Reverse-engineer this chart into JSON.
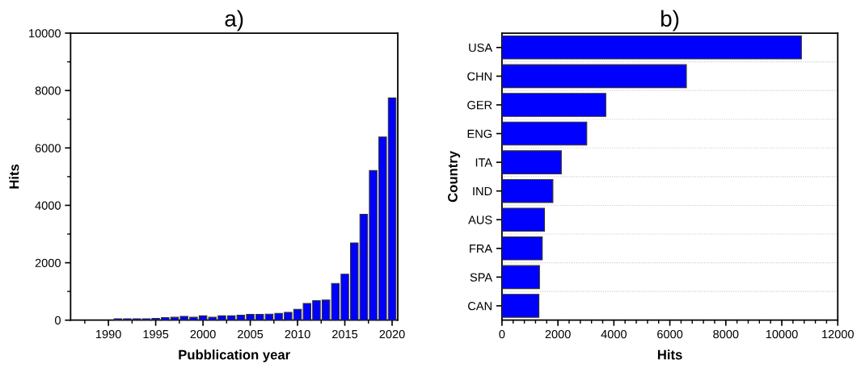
{
  "chart_data": [
    {
      "type": "bar",
      "title": "a)",
      "xlabel": "Pubblication year",
      "ylabel": "Hits",
      "color": "#0000ff",
      "x": [
        1991,
        1992,
        1993,
        1994,
        1995,
        1996,
        1997,
        1998,
        1999,
        2000,
        2001,
        2002,
        2003,
        2004,
        2005,
        2006,
        2007,
        2008,
        2009,
        2010,
        2011,
        2012,
        2013,
        2014,
        2015,
        2016,
        2017,
        2018,
        2019,
        2020
      ],
      "values": [
        50,
        50,
        50,
        50,
        60,
        90,
        100,
        130,
        100,
        150,
        100,
        150,
        150,
        170,
        200,
        200,
        210,
        240,
        270,
        380,
        580,
        680,
        700,
        1280,
        1600,
        2690,
        3690,
        5210,
        6380,
        7740
      ],
      "xlim": [
        1986,
        2020.6
      ],
      "xticks": [
        {
          "value": 1987.5,
          "label": null
        },
        1990,
        {
          "value": 1992.5,
          "label": null
        },
        1995,
        {
          "value": 1997.5,
          "label": null
        },
        2000,
        {
          "value": 2002.5,
          "label": null
        },
        2005,
        {
          "value": 2007.5,
          "label": null
        },
        2010,
        {
          "value": 2012.5,
          "label": null
        },
        2015,
        {
          "value": 2017.5,
          "label": null
        },
        2020
      ],
      "ylim": [
        0,
        10000
      ],
      "yticks": [
        0,
        {
          "value": 1000,
          "label": null
        },
        2000,
        {
          "value": 3000,
          "label": null
        },
        4000,
        {
          "value": 5000,
          "label": null
        },
        6000,
        {
          "value": 7000,
          "label": null
        },
        8000,
        {
          "value": 9000,
          "label": null
        },
        10000
      ],
      "grid": false
    },
    {
      "type": "bar",
      "orientation": "horizontal",
      "title": "b)",
      "xlabel": "Hits",
      "ylabel": "Country",
      "color": "#0000ff",
      "categories": [
        "USA",
        "CHN",
        "GER",
        "ENG",
        "ITA",
        "IND",
        "AUS",
        "FRA",
        "SPA",
        "CAN"
      ],
      "values": [
        10700,
        6590,
        3710,
        3030,
        2120,
        1820,
        1520,
        1440,
        1340,
        1320
      ],
      "xlim": [
        0,
        12000
      ],
      "xticks": [
        0,
        {
          "value": 400,
          "label": null
        },
        {
          "value": 800,
          "label": null
        },
        {
          "value": 1200,
          "label": null
        },
        {
          "value": 1600,
          "label": null
        },
        2000,
        {
          "value": 2400,
          "label": null
        },
        {
          "value": 2800,
          "label": null
        },
        {
          "value": 3200,
          "label": null
        },
        {
          "value": 3600,
          "label": null
        },
        4000,
        {
          "value": 4400,
          "label": null
        },
        {
          "value": 4800,
          "label": null
        },
        {
          "value": 5200,
          "label": null
        },
        {
          "value": 5600,
          "label": null
        },
        6000,
        {
          "value": 6400,
          "label": null
        },
        {
          "value": 6800,
          "label": null
        },
        {
          "value": 7200,
          "label": null
        },
        {
          "value": 7600,
          "label": null
        },
        8000,
        {
          "value": 8400,
          "label": null
        },
        {
          "value": 8800,
          "label": null
        },
        {
          "value": 9200,
          "label": null
        },
        {
          "value": 9600,
          "label": null
        },
        10000,
        {
          "value": 10400,
          "label": null
        },
        {
          "value": 10800,
          "label": null
        },
        {
          "value": 11200,
          "label": null
        },
        {
          "value": 11600,
          "label": null
        },
        12000
      ],
      "grid": "y"
    }
  ]
}
